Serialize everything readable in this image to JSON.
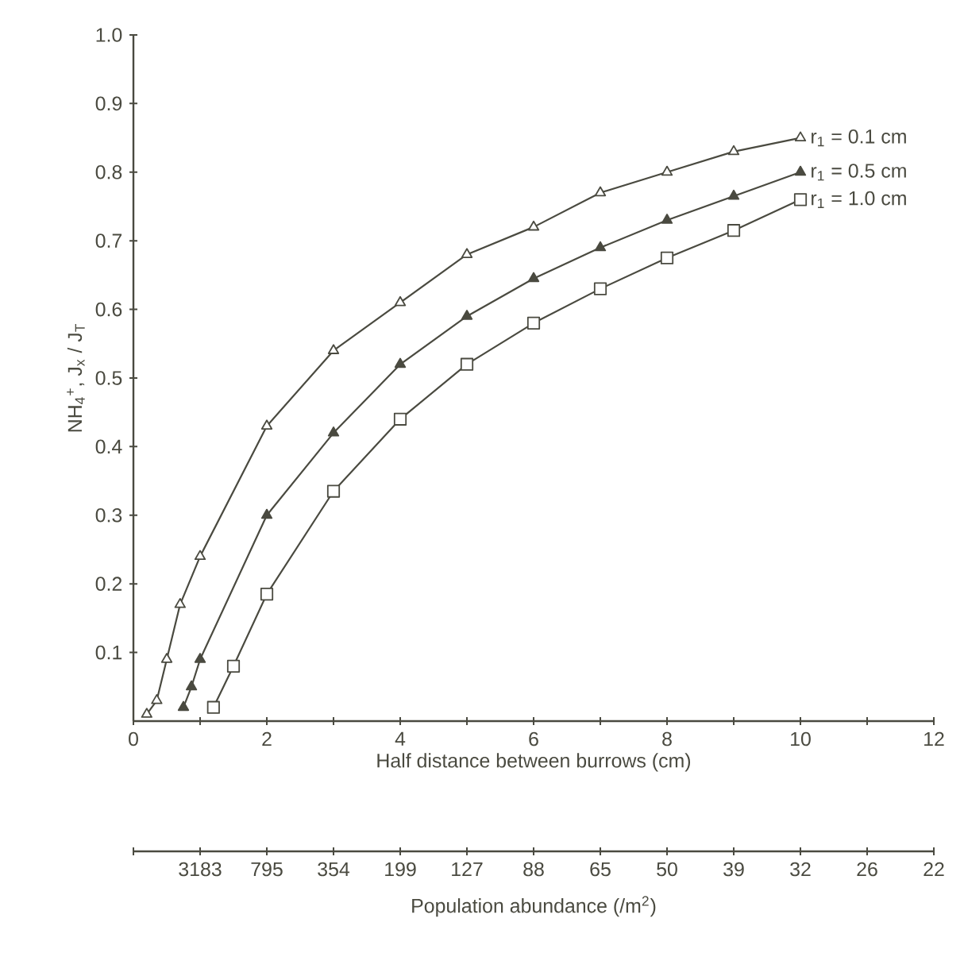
{
  "chart_data": {
    "type": "line",
    "xlabel": "Half distance between burrows (cm)",
    "ylabel": "NH$_{4}$$^{+}$, J$_{x}$ / J$_{T}$",
    "x2label": "Population abundance (/m$^{2}$)",
    "xlim": [
      0,
      12
    ],
    "ylim": [
      0,
      1
    ],
    "xticks": [
      0,
      {
        "value": 1,
        "label": null
      },
      2,
      {
        "value": 3,
        "label": null
      },
      4,
      {
        "value": 5,
        "label": null
      },
      6,
      {
        "value": 7,
        "label": null
      },
      8,
      {
        "value": 9,
        "label": null
      },
      10,
      {
        "value": 11,
        "label": null
      },
      12
    ],
    "yticks": [
      0.1,
      0.2,
      0.3,
      0.4,
      0.5,
      0.6,
      0.7,
      0.8,
      0.9,
      {
        "value": 1,
        "label": "1.0"
      }
    ],
    "annotations": [
      "3183",
      "795",
      "354",
      "199",
      "127",
      "88",
      "65",
      "50",
      "39",
      "32",
      "26",
      "22"
    ],
    "series": [
      {
        "name": "r$_{1}$ = 0.1 cm",
        "color": "#4a4a40",
        "marker": "triangle",
        "x": [
          0.2,
          0.35,
          0.5,
          0.7,
          1,
          2,
          3,
          4,
          5,
          6,
          7,
          8,
          9,
          10
        ],
        "values": [
          0.01,
          0.03,
          0.09,
          0.17,
          0.24,
          0.43,
          0.54,
          0.61,
          0.68,
          0.72,
          0.77,
          0.8,
          0.83,
          0.85
        ]
      },
      {
        "name": "r$_{1}$ = 0.5 cm",
        "color": "#4a4a40",
        "marker": "triangle",
        "x": [
          0.75,
          0.87,
          1,
          2,
          3,
          4,
          5,
          6,
          7,
          8,
          9,
          10
        ],
        "values": [
          0.02,
          0.05,
          0.09,
          0.3,
          0.42,
          0.52,
          0.59,
          0.645,
          0.69,
          0.73,
          0.765,
          0.8
        ]
      },
      {
        "name": "r$_{1}$ = 1.0 cm",
        "color": "#4a4a40",
        "marker": "square",
        "x": [
          1.2,
          1.5,
          2,
          3,
          4,
          5,
          6,
          7,
          8,
          9,
          10
        ],
        "values": [
          0.02,
          0.08,
          0.185,
          0.335,
          0.44,
          0.52,
          0.58,
          0.63,
          0.675,
          0.715,
          0.76
        ]
      }
    ]
  }
}
